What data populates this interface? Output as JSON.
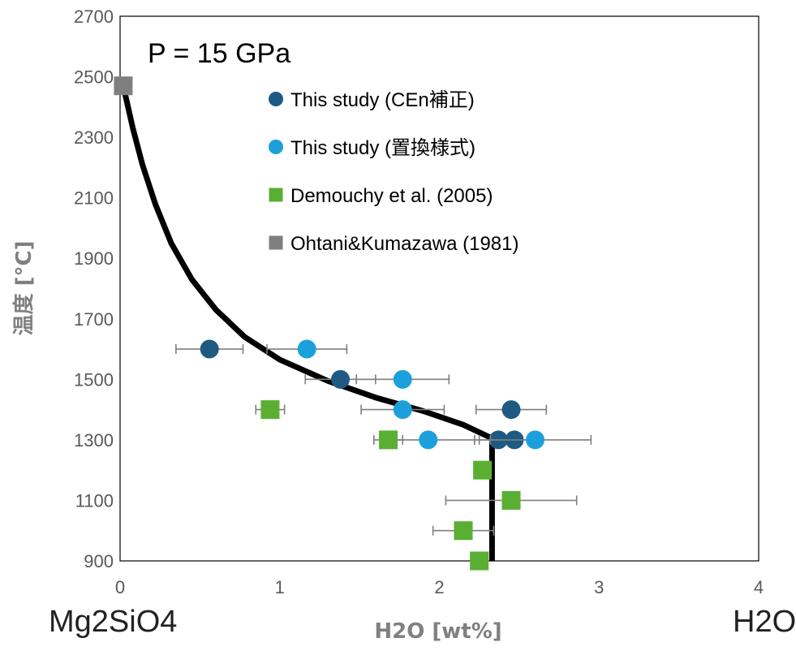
{
  "chart_data": {
    "type": "scatter",
    "annotation": "P = 15 GPa",
    "xlabel": "H2O [wt%]",
    "ylabel": "温度 [°C]",
    "xlim": [
      0,
      4
    ],
    "ylim": [
      900,
      2700
    ],
    "xticks": [
      0,
      1,
      2,
      3,
      4
    ],
    "yticks": [
      900,
      1100,
      1300,
      1500,
      1700,
      1900,
      2100,
      2300,
      2500,
      2700
    ],
    "end_labels": {
      "left": "Mg2SiO4",
      "right": "H2O"
    },
    "grid": false,
    "legend_position": "top-center",
    "series": [
      {
        "name": "This study (CEn補正)",
        "marker": "circle",
        "color": "#1F5A82",
        "points": [
          {
            "x": 0.56,
            "y": 1600,
            "err": 0.21
          },
          {
            "x": 1.38,
            "y": 1500,
            "err": 0.22
          },
          {
            "x": 2.45,
            "y": 1400,
            "err": 0.22
          },
          {
            "x": 2.37,
            "y": 1300,
            "err": 0.15
          },
          {
            "x": 2.47,
            "y": 1300,
            "err": 0.15
          }
        ]
      },
      {
        "name": "This study (置換様式)",
        "marker": "circle",
        "color": "#1CA0DC",
        "points": [
          {
            "x": 1.17,
            "y": 1600,
            "err": 0.25
          },
          {
            "x": 1.77,
            "y": 1500,
            "err": 0.29
          },
          {
            "x": 1.77,
            "y": 1400,
            "err": 0.26
          },
          {
            "x": 1.93,
            "y": 1300,
            "err": 0.29
          },
          {
            "x": 2.6,
            "y": 1300,
            "err": 0.35
          }
        ]
      },
      {
        "name": "Demouchy et al. (2005)",
        "marker": "square",
        "color": "#5AAF32",
        "points": [
          {
            "x": 0.94,
            "y": 1400,
            "err": 0.09
          },
          {
            "x": 1.68,
            "y": 1300,
            "err": 0.09
          },
          {
            "x": 2.27,
            "y": 1200,
            "err": 0.05
          },
          {
            "x": 2.45,
            "y": 1100,
            "err": 0.41
          },
          {
            "x": 2.15,
            "y": 1000,
            "err": 0.19
          },
          {
            "x": 2.25,
            "y": 900,
            "err": 0.0
          }
        ]
      },
      {
        "name": "Ohtani&Kumazawa  (1981)",
        "marker": "square",
        "color": "#7F7F7F",
        "points": [
          {
            "x": 0.02,
            "y": 2470,
            "err": 0.0
          }
        ]
      }
    ],
    "curve": {
      "color": "#000000",
      "points": [
        [
          0.02,
          2470
        ],
        [
          0.08,
          2330
        ],
        [
          0.14,
          2210
        ],
        [
          0.22,
          2080
        ],
        [
          0.32,
          1950
        ],
        [
          0.45,
          1830
        ],
        [
          0.6,
          1730
        ],
        [
          0.78,
          1640
        ],
        [
          1.0,
          1565
        ],
        [
          1.3,
          1495
        ],
        [
          1.6,
          1440
        ],
        [
          1.9,
          1395
        ],
        [
          2.15,
          1350
        ],
        [
          2.33,
          1305
        ],
        [
          2.33,
          900
        ]
      ]
    }
  }
}
